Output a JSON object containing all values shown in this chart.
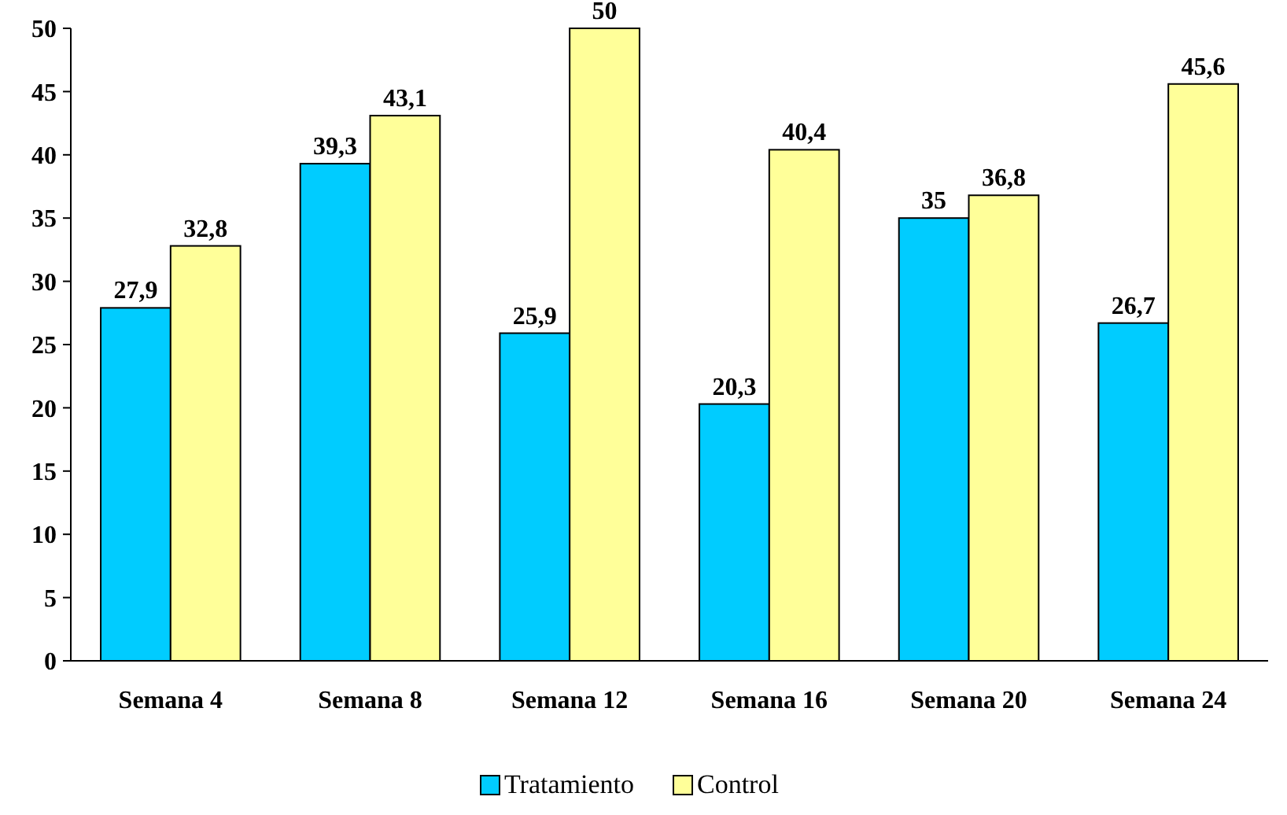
{
  "chart_data": {
    "type": "bar",
    "categories": [
      "Semana 4",
      "Semana 8",
      "Semana 12",
      "Semana 16",
      "Semana 20",
      "Semana 24"
    ],
    "series": [
      {
        "name": "Tratamiento",
        "color": "#00ccff",
        "values": [
          27.9,
          39.3,
          25.9,
          20.3,
          35,
          26.7
        ],
        "value_labels": [
          "27,9",
          "39,3",
          "25,9",
          "20,3",
          "35",
          "26,7"
        ]
      },
      {
        "name": "Control",
        "color": "#ffff99",
        "values": [
          32.8,
          43.1,
          50,
          40.4,
          36.8,
          45.6
        ],
        "value_labels": [
          "32,8",
          "43,1",
          "50",
          "40,4",
          "36,8",
          "45,6"
        ]
      }
    ],
    "ylim": [
      0,
      50
    ],
    "yticks": [
      0,
      5,
      10,
      15,
      20,
      25,
      30,
      35,
      40,
      45,
      50
    ],
    "grid": false,
    "legend": "bottom"
  }
}
